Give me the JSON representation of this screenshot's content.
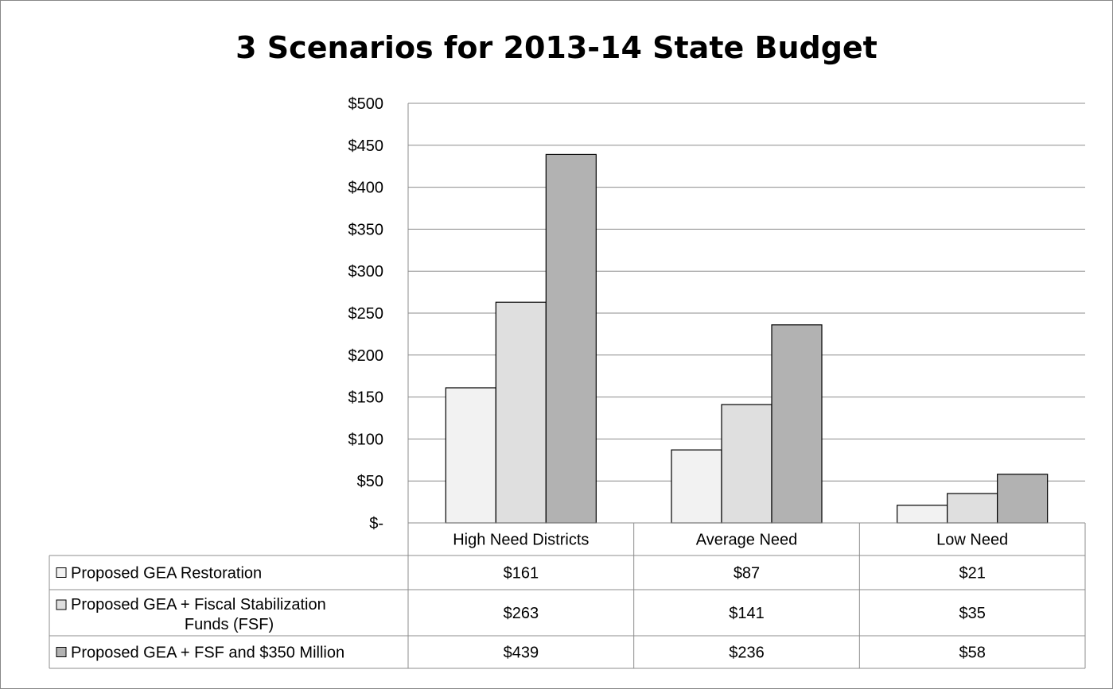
{
  "chart_data": {
    "type": "bar",
    "title": "3 Scenarios for 2013-14 State Budget",
    "categories": [
      "High Need Districts",
      "Average Need",
      "Low Need"
    ],
    "series": [
      {
        "name": "Proposed GEA Restoration",
        "values": [
          161,
          87,
          21
        ],
        "labels": [
          "$161",
          "$87",
          "$21"
        ],
        "color": "#f2f2f2"
      },
      {
        "name": "Proposed GEA + Fiscal Stabilization Funds (FSF)",
        "values": [
          263,
          141,
          35
        ],
        "labels": [
          "$263",
          "$141",
          "$35"
        ],
        "color": "#dfdfdf"
      },
      {
        "name": "Proposed GEA  + FSF and $350 Million",
        "values": [
          439,
          236,
          58
        ],
        "labels": [
          "$439",
          "$236",
          "$58"
        ],
        "color": "#b2b2b2"
      }
    ],
    "ylim": [
      0,
      500
    ],
    "yticks": [
      "$-",
      "$50",
      "$100",
      "$150",
      "$200",
      "$250",
      "$300",
      "$350",
      "$400",
      "$450",
      "$500"
    ],
    "grid": true,
    "legend": "data-table"
  }
}
